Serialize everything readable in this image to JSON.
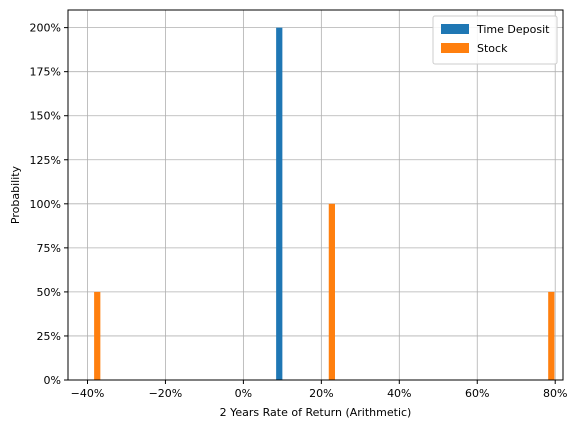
{
  "chart_data": {
    "type": "bar",
    "title": "",
    "xlabel": "2 Years Rate of Return (Arithmetic)",
    "ylabel": "Probability",
    "xlim": [
      -45,
      82
    ],
    "ylim": [
      0,
      2.1
    ],
    "xticks": [
      -40,
      -20,
      0,
      20,
      40,
      60,
      80
    ],
    "xtick_labels": [
      "−40%",
      "−20%",
      "0%",
      "20%",
      "40%",
      "60%",
      "80%"
    ],
    "yticks": [
      0,
      0.25,
      0.5,
      0.75,
      1.0,
      1.25,
      1.5,
      1.75,
      2.0
    ],
    "ytick_labels": [
      "0%",
      "25%",
      "50%",
      "75%",
      "100%",
      "125%",
      "150%",
      "175%",
      "200%"
    ],
    "grid": true,
    "legend_position": "top-right",
    "bar_width": 1.6,
    "series": [
      {
        "name": "Time Deposit",
        "color": "#1f77b4",
        "bars": [
          {
            "x": 9.2,
            "value": 2.0
          }
        ]
      },
      {
        "name": "Stock",
        "color": "#ff7f0e",
        "bars": [
          {
            "x": -37.5,
            "value": 0.5
          },
          {
            "x": 22.7,
            "value": 1.0
          },
          {
            "x": 79.0,
            "value": 0.5
          }
        ]
      }
    ]
  }
}
